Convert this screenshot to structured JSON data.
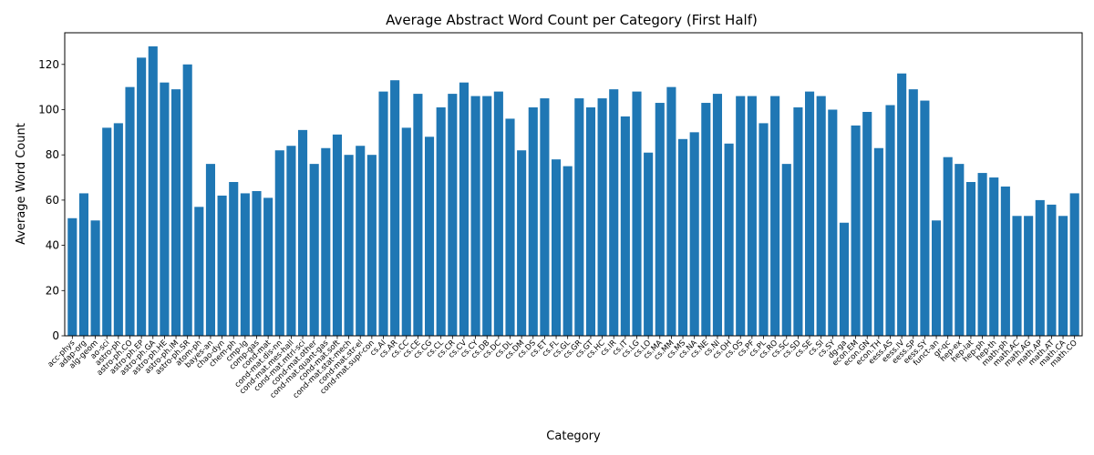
{
  "chart_data": {
    "type": "bar",
    "title": "Average Abstract Word Count per Category (First Half)",
    "xlabel": "Category",
    "ylabel": "Average Word Count",
    "ylim": [
      0,
      134
    ],
    "yticks": [
      0,
      20,
      40,
      60,
      80,
      100,
      120
    ],
    "bar_color": "#1f77b4",
    "grid": false,
    "categories": [
      "acc-phys",
      "adap-org",
      "alg-geom",
      "ao-sci",
      "astro-ph",
      "astro-ph.CO",
      "astro-ph.EP",
      "astro-ph.GA",
      "astro-ph.HE",
      "astro-ph.IM",
      "astro-ph.SR",
      "atom-ph",
      "bayes-an",
      "chao-dyn",
      "chem-ph",
      "cmp-lg",
      "comp-gas",
      "cond-mat",
      "cond-mat.dis-nn",
      "cond-mat.mes-hall",
      "cond-mat.mtrl-sci",
      "cond-mat.other",
      "cond-mat.quant-gas",
      "cond-mat.soft",
      "cond-mat.stat-mech",
      "cond-mat.str-el",
      "cond-mat.supr-con",
      "cs.AI",
      "cs.AR",
      "cs.CC",
      "cs.CE",
      "cs.CG",
      "cs.CL",
      "cs.CR",
      "cs.CV",
      "cs.CY",
      "cs.DB",
      "cs.DC",
      "cs.DL",
      "cs.DM",
      "cs.DS",
      "cs.ET",
      "cs.FL",
      "cs.GL",
      "cs.GR",
      "cs.GT",
      "cs.HC",
      "cs.IR",
      "cs.IT",
      "cs.LG",
      "cs.LO",
      "cs.MA",
      "cs.MM",
      "cs.MS",
      "cs.NA",
      "cs.NE",
      "cs.NI",
      "cs.OH",
      "cs.OS",
      "cs.PF",
      "cs.PL",
      "cs.RO",
      "cs.SC",
      "cs.SD",
      "cs.SE",
      "cs.SI",
      "cs.SY",
      "dg-ga",
      "econ.EM",
      "econ.GN",
      "econ.TH",
      "eess.AS",
      "eess.IV",
      "eess.SP",
      "eess.SY",
      "funct-an",
      "gr-qc",
      "hep-ex",
      "hep-lat",
      "hep-ph",
      "hep-th",
      "math-ph",
      "math.AC",
      "math.AG",
      "math.AP",
      "math.AT",
      "math.CA",
      "math.CO"
    ],
    "values": [
      52,
      63,
      51,
      92,
      94,
      110,
      123,
      128,
      112,
      109,
      120,
      57,
      76,
      62,
      68,
      63,
      64,
      61,
      82,
      84,
      91,
      76,
      83,
      89,
      80,
      84,
      80,
      108,
      113,
      92,
      107,
      88,
      101,
      107,
      112,
      106,
      106,
      108,
      96,
      82,
      101,
      105,
      78,
      75,
      105,
      101,
      105,
      109,
      97,
      108,
      81,
      103,
      110,
      87,
      90,
      103,
      107,
      85,
      106,
      106,
      94,
      106,
      76,
      101,
      108,
      106,
      100,
      50,
      93,
      99,
      83,
      102,
      116,
      109,
      104,
      51,
      79,
      76,
      68,
      72,
      70,
      66,
      53,
      53,
      60,
      58,
      53,
      63
    ]
  }
}
